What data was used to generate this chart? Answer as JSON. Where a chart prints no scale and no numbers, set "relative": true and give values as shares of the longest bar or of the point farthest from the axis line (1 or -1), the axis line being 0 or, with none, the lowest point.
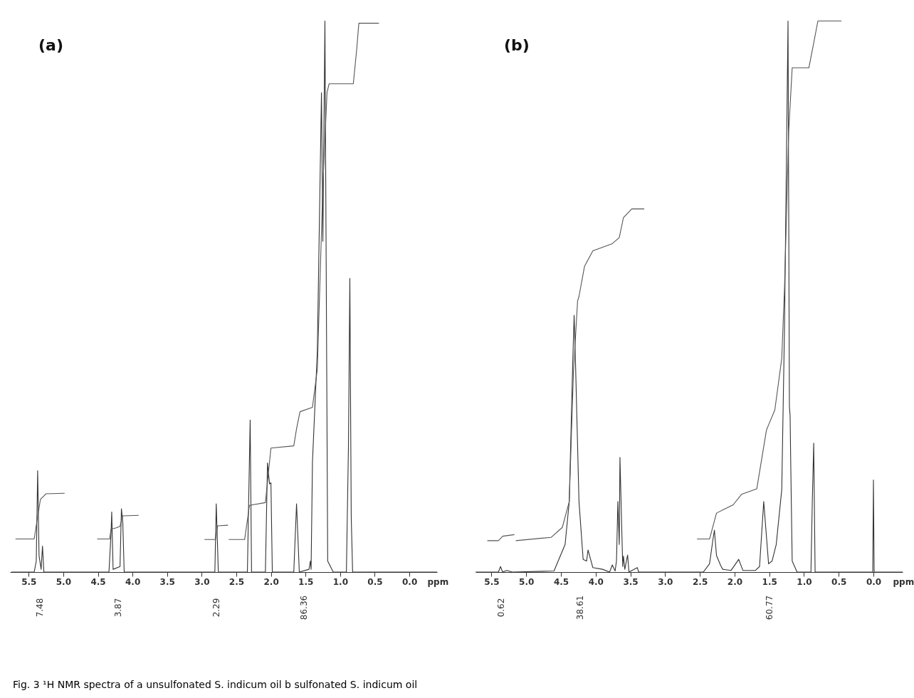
{
  "chart_data": [
    {
      "type": "line",
      "title": "(a)",
      "relative": true,
      "xlabel": "ppm",
      "xlim": [
        5.77,
        -0.4
      ],
      "xticks": [
        {
          "value": 5.5,
          "label": "5.5"
        },
        {
          "value": 5,
          "label": "5.0"
        },
        {
          "value": 4.5,
          "label": "4.5"
        },
        {
          "value": 4,
          "label": "4.0"
        },
        {
          "value": 3.5,
          "label": "3.5"
        },
        {
          "value": 3,
          "label": "3.0"
        },
        {
          "value": 2.5,
          "label": "2.5"
        },
        {
          "value": 2,
          "label": "2.0"
        },
        {
          "value": 1.5,
          "label": "1.5"
        },
        {
          "value": 1,
          "label": "1.0"
        },
        {
          "value": 0.5,
          "label": "0.5"
        },
        {
          "value": 0,
          "label": "0.0"
        }
      ],
      "series": [
        {
          "color": "#333333",
          "x": [
            5.75,
            5.42,
            5.39,
            5.37,
            5.35,
            5.32,
            5.3,
            5.28,
            4.34,
            4.31,
            4.3,
            4.28,
            4.18,
            4.16,
            4.14,
            4.12,
            2.81,
            2.79,
            2.76,
            2.34,
            2.32,
            2.3,
            2.28,
            2.08,
            2.05,
            2.02,
            2.0,
            1.98,
            1.67,
            1.63,
            1.59,
            1.45,
            1.43,
            1.42,
            1.4,
            1.33,
            1.27,
            1.25,
            1.22,
            1.18,
            1.1,
            0.91,
            0.88,
            0.86,
            0.84,
            0.82,
            -0.4
          ],
          "values": [
            0,
            0,
            0.02,
            0.184,
            0.03,
            0.005,
            0.047,
            0,
            0,
            0.07,
            0.109,
            0.005,
            0.01,
            0.115,
            0.09,
            0,
            0,
            0.124,
            0,
            0,
            0.14,
            0.276,
            0,
            0,
            0.198,
            0.16,
            0.162,
            0,
            0,
            0.124,
            0,
            0.005,
            0.02,
            0.005,
            0.2,
            0.4,
            0.87,
            0.6,
            1.0,
            0.02,
            0,
            0,
            0.23,
            0.533,
            0.1,
            0,
            0
          ]
        },
        {
          "color": "#555555",
          "x": [
            5.69,
            5.42,
            5.38,
            5.35,
            5.33,
            5.25,
            4.98
          ],
          "values": [
            0.06,
            0.06,
            0.093,
            0.116,
            0.132,
            0.142,
            0.143
          ]
        },
        {
          "color": "#555555",
          "x": [
            4.51,
            4.33,
            4.31,
            4.24,
            4.18,
            4.14,
            3.91
          ],
          "values": [
            0.06,
            0.06,
            0.078,
            0.08,
            0.083,
            0.102,
            0.103
          ]
        },
        {
          "color": "#555555",
          "x": [
            2.96,
            2.81,
            2.8,
            2.77,
            2.62
          ],
          "values": [
            0.059,
            0.059,
            0.059,
            0.084,
            0.085
          ]
        },
        {
          "color": "#555555",
          "x": [
            2.61,
            2.38,
            2.31,
            2.08,
            2.0,
            1.67,
            1.63,
            1.58,
            1.4,
            1.33,
            1.25,
            1.19,
            1.16,
            0.81,
            0.76,
            0.73,
            0.44
          ],
          "values": [
            0.059,
            0.059,
            0.121,
            0.126,
            0.225,
            0.229,
            0.26,
            0.291,
            0.299,
            0.368,
            0.7,
            0.87,
            0.886,
            0.886,
            0.95,
            0.996,
            0.996
          ]
        }
      ],
      "annotations": [
        "7.48",
        "3.87",
        "2.29",
        "86.36",
        "Fig. 3 ¹H NMR spectra of a unsulfonated S. indicum oil b sulfonated S. indicum oil"
      ]
    },
    {
      "type": "line",
      "title": "(b)",
      "relative": true,
      "xlabel": "ppm",
      "xlim": [
        5.73,
        -0.42
      ],
      "xticks": [
        {
          "value": 5.5,
          "label": "5.5"
        },
        {
          "value": 5,
          "label": "5.0"
        },
        {
          "value": 4.5,
          "label": "4.5"
        },
        {
          "value": 4,
          "label": "4.0"
        },
        {
          "value": 3.5,
          "label": "3.5"
        },
        {
          "value": 3,
          "label": "3.0"
        },
        {
          "value": 2.5,
          "label": "2.5"
        },
        {
          "value": 2,
          "label": "2.0"
        },
        {
          "value": 1.5,
          "label": "1.5"
        },
        {
          "value": 1,
          "label": "1.0"
        },
        {
          "value": 0.5,
          "label": "0.5"
        },
        {
          "value": 0,
          "label": "0.0"
        }
      ],
      "series": [
        {
          "color": "#333333",
          "x": [
            5.73,
            5.4,
            5.37,
            5.34,
            5.28,
            5.2,
            4.6,
            4.44,
            4.38,
            4.33,
            4.31,
            4.29,
            4.24,
            4.18,
            4.13,
            4.11,
            4.04,
            3.9,
            3.8,
            3.76,
            3.72,
            3.7,
            3.68,
            3.66,
            3.65,
            3.63,
            3.61,
            3.6,
            3.58,
            3.54,
            3.52,
            3.4,
            3.38,
            2.45,
            2.36,
            2.31,
            2.29,
            2.26,
            2.2,
            2.17,
            2.05,
            1.94,
            1.88,
            1.7,
            1.64,
            1.58,
            1.51,
            1.46,
            1.4,
            1.32,
            1.28,
            1.23,
            1.21,
            1.2,
            1.19,
            1.17,
            1.1,
            0.9,
            0.88,
            0.86,
            0.84,
            0.01,
            0,
            -0.01,
            -0.42
          ],
          "values": [
            0,
            0,
            0.01,
            0,
            0.003,
            0,
            0.002,
            0.05,
            0.128,
            0.38,
            0.466,
            0.38,
            0.128,
            0.023,
            0.02,
            0.04,
            0.008,
            0.005,
            0,
            0.013,
            0.002,
            0.02,
            0.128,
            0.05,
            0.208,
            0.107,
            0.01,
            0.029,
            0.005,
            0.031,
            0,
            0.008,
            0,
            0,
            0.015,
            0.06,
            0.076,
            0.03,
            0.012,
            0.005,
            0.003,
            0.023,
            0.003,
            0.003,
            0.01,
            0.128,
            0.015,
            0.02,
            0.05,
            0.15,
            0.45,
            1.0,
            0.3,
            0.284,
            0.19,
            0.02,
            0,
            0,
            0.13,
            0.234,
            0,
            0,
            0.167,
            0,
            0
          ]
        },
        {
          "color": "#555555",
          "x": [
            5.56,
            5.4,
            5.36,
            5.34,
            5.17
          ],
          "values": [
            0.057,
            0.057,
            0.062,
            0.065,
            0.068
          ]
        },
        {
          "color": "#555555",
          "x": [
            5.15,
            4.64,
            4.48,
            4.38,
            4.32,
            4.26,
            4.24,
            4.16,
            4.04,
            3.76,
            3.66,
            3.6,
            3.48,
            3.3
          ],
          "values": [
            0.057,
            0.063,
            0.081,
            0.128,
            0.362,
            0.492,
            0.5,
            0.555,
            0.583,
            0.596,
            0.607,
            0.643,
            0.659,
            0.659
          ]
        },
        {
          "color": "#555555",
          "x": [
            2.54,
            2.36,
            2.26,
            2.02,
            1.9,
            1.68,
            1.54,
            1.5,
            1.42,
            1.32,
            1.28,
            1.22,
            1.17,
            0.93,
            0.86,
            0.8,
            0.46
          ],
          "values": [
            0.06,
            0.06,
            0.107,
            0.122,
            0.141,
            0.151,
            0.258,
            0.27,
            0.294,
            0.388,
            0.518,
            0.8,
            0.915,
            0.915,
            0.96,
            1.0,
            1.0
          ]
        }
      ],
      "annotations": [
        "0.62",
        "38.61",
        "60.77"
      ]
    }
  ]
}
